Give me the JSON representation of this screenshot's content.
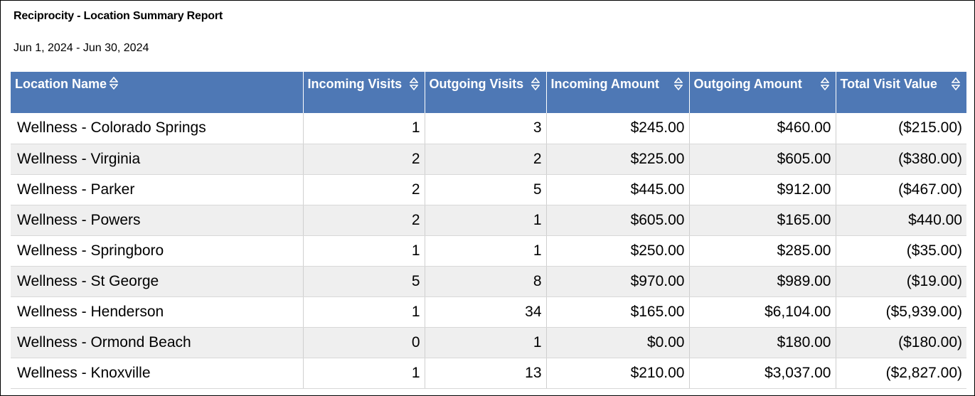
{
  "report": {
    "title": "Reciprocity - Location Summary Report",
    "date_range": "Jun 1, 2024 - Jun 30, 2024"
  },
  "columns": [
    {
      "label": "Location Name",
      "icon": "sort-icon"
    },
    {
      "label": "Incoming Visits",
      "icon": "sort-icon"
    },
    {
      "label": "Outgoing Visits",
      "icon": "sort-icon"
    },
    {
      "label": "Incoming Amount",
      "icon": "sort-icon"
    },
    {
      "label": "Outgoing Amount",
      "icon": "sort-icon"
    },
    {
      "label": "Total Visit Value",
      "icon": "sort-icon"
    }
  ],
  "rows": [
    [
      "Wellness - Colorado Springs",
      "1",
      "3",
      "$245.00",
      "$460.00",
      "($215.00)"
    ],
    [
      "Wellness -  Virginia",
      "2",
      "2",
      "$225.00",
      "$605.00",
      "($380.00)"
    ],
    [
      "Wellness -  Parker",
      "2",
      "5",
      "$445.00",
      "$912.00",
      "($467.00)"
    ],
    [
      "Wellness - Powers",
      "2",
      "1",
      "$605.00",
      "$165.00",
      "$440.00"
    ],
    [
      "Wellness - Springboro",
      "1",
      "1",
      "$250.00",
      "$285.00",
      "($35.00)"
    ],
    [
      "Wellness - St George",
      "5",
      "8",
      "$970.00",
      "$989.00",
      "($19.00)"
    ],
    [
      "Wellness - Henderson",
      "1",
      "34",
      "$165.00",
      "$6,104.00",
      "($5,939.00)"
    ],
    [
      "Wellness - Ormond Beach",
      "0",
      "1",
      "$0.00",
      "$180.00",
      "($180.00)"
    ],
    [
      "Wellness -  Knoxville",
      "1",
      "13",
      "$210.00",
      "$3,037.00",
      "($2,827.00)"
    ]
  ],
  "colors": {
    "header_bg": "#4e78b5",
    "header_text": "#ffffff",
    "alt_row_bg": "#efefef"
  }
}
